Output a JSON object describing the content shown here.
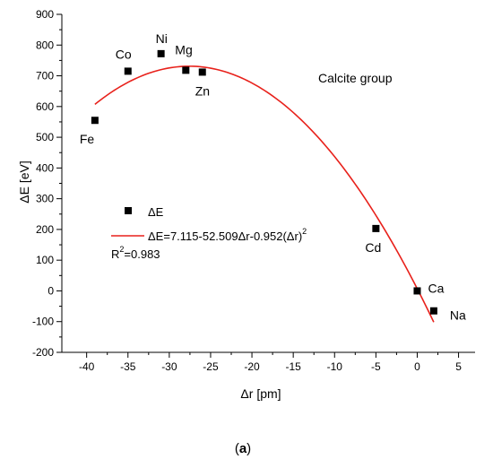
{
  "chart_data": {
    "type": "scatter",
    "xlabel": "Δr [pm]",
    "ylabel": "ΔE [eV]",
    "xlim": [
      -43,
      7
    ],
    "ylim": [
      -200,
      900
    ],
    "x_ticks": [
      "-40",
      "-35",
      "-30",
      "-25",
      "-20",
      "-15",
      "-10",
      "-5",
      "0",
      "5"
    ],
    "y_ticks": [
      "-200",
      "-100",
      "0",
      "100",
      "200",
      "300",
      "400",
      "500",
      "600",
      "700",
      "800",
      "900"
    ],
    "grid": false,
    "annotation": "Calcite group",
    "legend": {
      "placement": "left-middle",
      "marker_label": "ΔE",
      "fit_label": "ΔE=7.115-52.509Δr-0.952(Δr)",
      "fit_label_sup": "2",
      "r2_prefix": "R",
      "r2_sup": "2",
      "r2_value": "=0.983"
    },
    "points": [
      {
        "label": "Fe",
        "x": -39,
        "y": 555
      },
      {
        "label": "Co",
        "x": -35,
        "y": 715
      },
      {
        "label": "Ni",
        "x": -31,
        "y": 772
      },
      {
        "label": "Mg",
        "x": -28,
        "y": 718
      },
      {
        "label": "Zn",
        "x": -26,
        "y": 712
      },
      {
        "label": "Cd",
        "x": -5,
        "y": 203
      },
      {
        "label": "Ca",
        "x": 0,
        "y": 0
      },
      {
        "label": "Na",
        "x": 2,
        "y": -65
      }
    ],
    "fit": {
      "a": 7.115,
      "b": -52.509,
      "c": -0.952,
      "x_range": [
        -39,
        2
      ],
      "color": "#e8211b"
    },
    "marker_color": "#000000",
    "caption_open": "(",
    "caption_bold": "a",
    "caption_close": ")"
  }
}
